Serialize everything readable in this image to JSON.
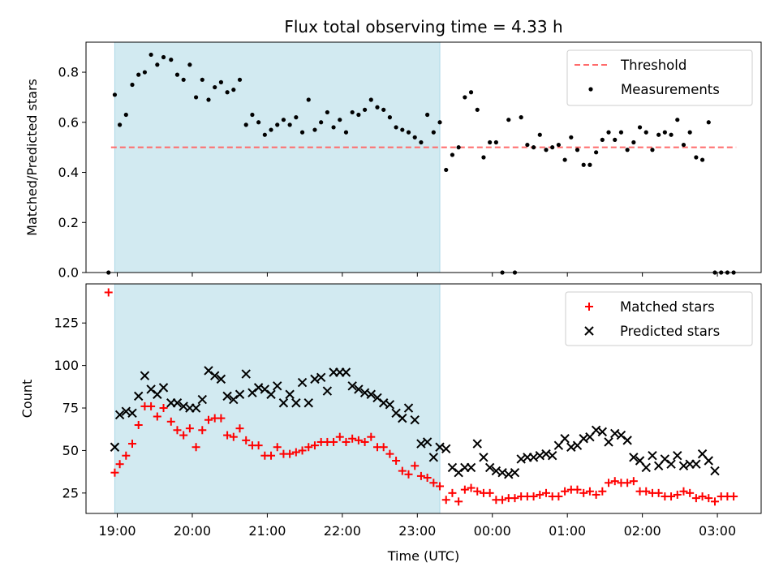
{
  "chart_data": [
    {
      "type": "scatter",
      "title": "Flux total observing time = 4.33 h",
      "xlabel": "",
      "ylabel": "Matched/Predicted stars",
      "xlim": [
        "18:35",
        "03:35"
      ],
      "ylim": [
        0,
        0.92
      ],
      "y_ticks": [
        0.0,
        0.2,
        0.4,
        0.6,
        0.8
      ],
      "y_tick_labels": [
        "0.0",
        "0.2",
        "0.4",
        "0.6",
        "0.8"
      ],
      "shaded_span": {
        "start": "18:58",
        "end": "23:18",
        "color": "#add8e6"
      },
      "threshold": {
        "name": "Threshold",
        "value": 0.5,
        "start": "18:55",
        "end": "03:15",
        "color": "#ff6b6b"
      },
      "legend": {
        "position": "upper right",
        "entries": [
          "Threshold",
          "Measurements"
        ]
      },
      "series": [
        {
          "name": "Measurements",
          "color": "#000000",
          "x": [
            "18:53",
            "18:58",
            "19:02",
            "19:07",
            "19:12",
            "19:17",
            "19:22",
            "19:27",
            "19:32",
            "19:37",
            "19:43",
            "19:48",
            "19:53",
            "19:58",
            "20:03",
            "20:08",
            "20:13",
            "20:18",
            "20:23",
            "20:28",
            "20:33",
            "20:38",
            "20:43",
            "20:48",
            "20:53",
            "20:58",
            "21:03",
            "21:08",
            "21:13",
            "21:18",
            "21:23",
            "21:28",
            "21:33",
            "21:38",
            "21:43",
            "21:48",
            "21:53",
            "21:58",
            "22:03",
            "22:08",
            "22:13",
            "22:18",
            "22:23",
            "22:28",
            "22:33",
            "22:38",
            "22:43",
            "22:48",
            "22:53",
            "22:58",
            "23:03",
            "23:08",
            "23:13",
            "23:18",
            "23:23",
            "23:28",
            "23:33",
            "23:38",
            "23:43",
            "23:48",
            "23:53",
            "23:58",
            "00:03",
            "00:08",
            "00:13",
            "00:18",
            "00:23",
            "00:28",
            "00:33",
            "00:38",
            "00:43",
            "00:48",
            "00:53",
            "00:58",
            "01:03",
            "01:08",
            "01:13",
            "01:18",
            "01:23",
            "01:28",
            "01:33",
            "01:38",
            "01:43",
            "01:48",
            "01:53",
            "01:58",
            "02:03",
            "02:08",
            "02:13",
            "02:18",
            "02:23",
            "02:28",
            "02:33",
            "02:38",
            "02:43",
            "02:48",
            "02:53",
            "02:58",
            "03:03",
            "03:08",
            "03:13"
          ],
          "y": [
            0.0,
            0.71,
            0.59,
            0.63,
            0.75,
            0.79,
            0.8,
            0.87,
            0.83,
            0.86,
            0.85,
            0.79,
            0.77,
            0.83,
            0.7,
            0.77,
            0.69,
            0.74,
            0.76,
            0.72,
            0.73,
            0.77,
            0.59,
            0.63,
            0.6,
            0.55,
            0.57,
            0.59,
            0.61,
            0.59,
            0.62,
            0.56,
            0.69,
            0.57,
            0.6,
            0.64,
            0.58,
            0.61,
            0.56,
            0.64,
            0.63,
            0.65,
            0.69,
            0.66,
            0.65,
            0.62,
            0.58,
            0.57,
            0.56,
            0.54,
            0.52,
            0.63,
            0.56,
            0.6,
            0.41,
            0.47,
            0.5,
            0.7,
            0.72,
            0.65,
            0.46,
            0.52,
            0.52,
            0.0,
            0.61,
            0.0,
            0.62,
            0.51,
            0.5,
            0.55,
            0.49,
            0.5,
            0.51,
            0.45,
            0.54,
            0.49,
            0.43,
            0.43,
            0.48,
            0.53,
            0.56,
            0.53,
            0.56,
            0.49,
            0.52,
            0.58,
            0.56,
            0.49,
            0.55,
            0.56,
            0.55,
            0.61,
            0.51,
            0.56,
            0.46,
            0.45,
            0.6,
            0.0,
            0.0,
            0.0,
            0.0
          ]
        }
      ]
    },
    {
      "type": "scatter",
      "title": "",
      "xlabel": "Time (UTC)",
      "ylabel": "Count",
      "xlim": [
        "18:35",
        "03:35"
      ],
      "ylim": [
        13,
        148
      ],
      "x_ticks": [
        "19:00",
        "20:00",
        "21:00",
        "22:00",
        "23:00",
        "00:00",
        "01:00",
        "02:00",
        "03:00"
      ],
      "y_ticks": [
        25,
        50,
        75,
        100,
        125
      ],
      "y_tick_labels": [
        "25",
        "50",
        "75",
        "100",
        "125"
      ],
      "shaded_span": {
        "start": "18:58",
        "end": "23:18",
        "color": "#add8e6"
      },
      "legend": {
        "position": "upper right",
        "entries": [
          "Matched stars",
          "Predicted stars"
        ]
      },
      "series": [
        {
          "name": "Matched stars",
          "marker": "+",
          "color": "#ff0000",
          "x": [
            "18:53",
            "18:58",
            "19:02",
            "19:07",
            "19:12",
            "19:17",
            "19:22",
            "19:27",
            "19:32",
            "19:37",
            "19:43",
            "19:48",
            "19:53",
            "19:58",
            "20:03",
            "20:08",
            "20:13",
            "20:18",
            "20:23",
            "20:28",
            "20:33",
            "20:38",
            "20:43",
            "20:48",
            "20:53",
            "20:58",
            "21:03",
            "21:08",
            "21:13",
            "21:18",
            "21:23",
            "21:28",
            "21:33",
            "21:38",
            "21:43",
            "21:48",
            "21:53",
            "21:58",
            "22:03",
            "22:08",
            "22:13",
            "22:18",
            "22:23",
            "22:28",
            "22:33",
            "22:38",
            "22:43",
            "22:48",
            "22:53",
            "22:58",
            "23:03",
            "23:08",
            "23:13",
            "23:18",
            "23:23",
            "23:28",
            "23:33",
            "23:38",
            "23:43",
            "23:48",
            "23:53",
            "23:58",
            "00:03",
            "00:08",
            "00:13",
            "00:18",
            "00:23",
            "00:28",
            "00:33",
            "00:38",
            "00:43",
            "00:48",
            "00:53",
            "00:58",
            "01:03",
            "01:08",
            "01:13",
            "01:18",
            "01:23",
            "01:28",
            "01:33",
            "01:38",
            "01:43",
            "01:48",
            "01:53",
            "01:58",
            "02:03",
            "02:08",
            "02:13",
            "02:18",
            "02:23",
            "02:28",
            "02:33",
            "02:38",
            "02:43",
            "02:48",
            "02:53",
            "02:58",
            "03:03",
            "03:08",
            "03:13"
          ],
          "y": [
            143,
            37,
            42,
            47,
            54,
            65,
            76,
            76,
            70,
            75,
            67,
            62,
            59,
            63,
            52,
            62,
            68,
            69,
            69,
            59,
            58,
            63,
            56,
            53,
            53,
            47,
            47,
            52,
            48,
            48,
            49,
            50,
            52,
            53,
            55,
            55,
            55,
            58,
            55,
            57,
            56,
            55,
            58,
            52,
            52,
            48,
            44,
            38,
            36,
            41,
            35,
            34,
            31,
            29,
            21,
            25,
            20,
            27,
            28,
            26,
            25,
            25,
            21,
            21,
            22,
            22,
            23,
            23,
            23,
            24,
            25,
            23,
            23,
            26,
            27,
            27,
            25,
            26,
            24,
            26,
            31,
            32,
            31,
            31,
            32,
            26,
            26,
            25,
            25,
            23,
            23,
            24,
            26,
            25,
            22,
            23,
            22,
            20,
            23,
            23,
            23
          ]
        },
        {
          "name": "Predicted stars",
          "marker": "x",
          "color": "#000000",
          "x": [
            "18:58",
            "19:02",
            "19:07",
            "19:12",
            "19:17",
            "19:22",
            "19:27",
            "19:32",
            "19:37",
            "19:43",
            "19:48",
            "19:53",
            "19:58",
            "20:03",
            "20:08",
            "20:13",
            "20:18",
            "20:23",
            "20:28",
            "20:33",
            "20:38",
            "20:43",
            "20:48",
            "20:53",
            "20:58",
            "21:03",
            "21:08",
            "21:13",
            "21:18",
            "21:23",
            "21:28",
            "21:33",
            "21:38",
            "21:43",
            "21:48",
            "21:53",
            "21:58",
            "22:03",
            "22:08",
            "22:13",
            "22:18",
            "22:23",
            "22:28",
            "22:33",
            "22:38",
            "22:43",
            "22:48",
            "22:53",
            "22:58",
            "23:03",
            "23:08",
            "23:13",
            "23:18",
            "23:23",
            "23:28",
            "23:33",
            "23:38",
            "23:43",
            "23:48",
            "23:53",
            "23:58",
            "00:03",
            "00:08",
            "00:13",
            "00:18",
            "00:23",
            "00:28",
            "00:33",
            "00:38",
            "00:43",
            "00:48",
            "00:53",
            "00:58",
            "01:03",
            "01:08",
            "01:13",
            "01:18",
            "01:23",
            "01:28",
            "01:33",
            "01:38",
            "01:43",
            "01:48",
            "01:53",
            "01:58",
            "02:03",
            "02:08",
            "02:13",
            "02:18",
            "02:23",
            "02:28",
            "02:33",
            "02:38",
            "02:43",
            "02:48",
            "02:53",
            "02:58"
          ],
          "y": [
            52,
            71,
            73,
            72,
            82,
            94,
            86,
            83,
            87,
            78,
            78,
            76,
            75,
            75,
            80,
            97,
            94,
            92,
            82,
            80,
            83,
            95,
            84,
            87,
            86,
            83,
            88,
            78,
            83,
            78,
            90,
            78,
            92,
            93,
            85,
            96,
            96,
            96,
            88,
            86,
            84,
            83,
            81,
            78,
            77,
            72,
            69,
            75,
            68,
            54,
            55,
            46,
            52,
            51,
            40,
            37,
            40,
            40,
            54,
            46,
            40,
            38,
            37,
            36,
            37,
            45,
            46,
            46,
            47,
            48,
            47,
            53,
            57,
            52,
            53,
            57,
            58,
            62,
            61,
            55,
            60,
            59,
            56,
            46,
            44,
            40,
            47,
            41,
            45,
            42,
            47,
            41,
            42,
            42,
            48,
            44,
            38
          ]
        }
      ]
    }
  ]
}
